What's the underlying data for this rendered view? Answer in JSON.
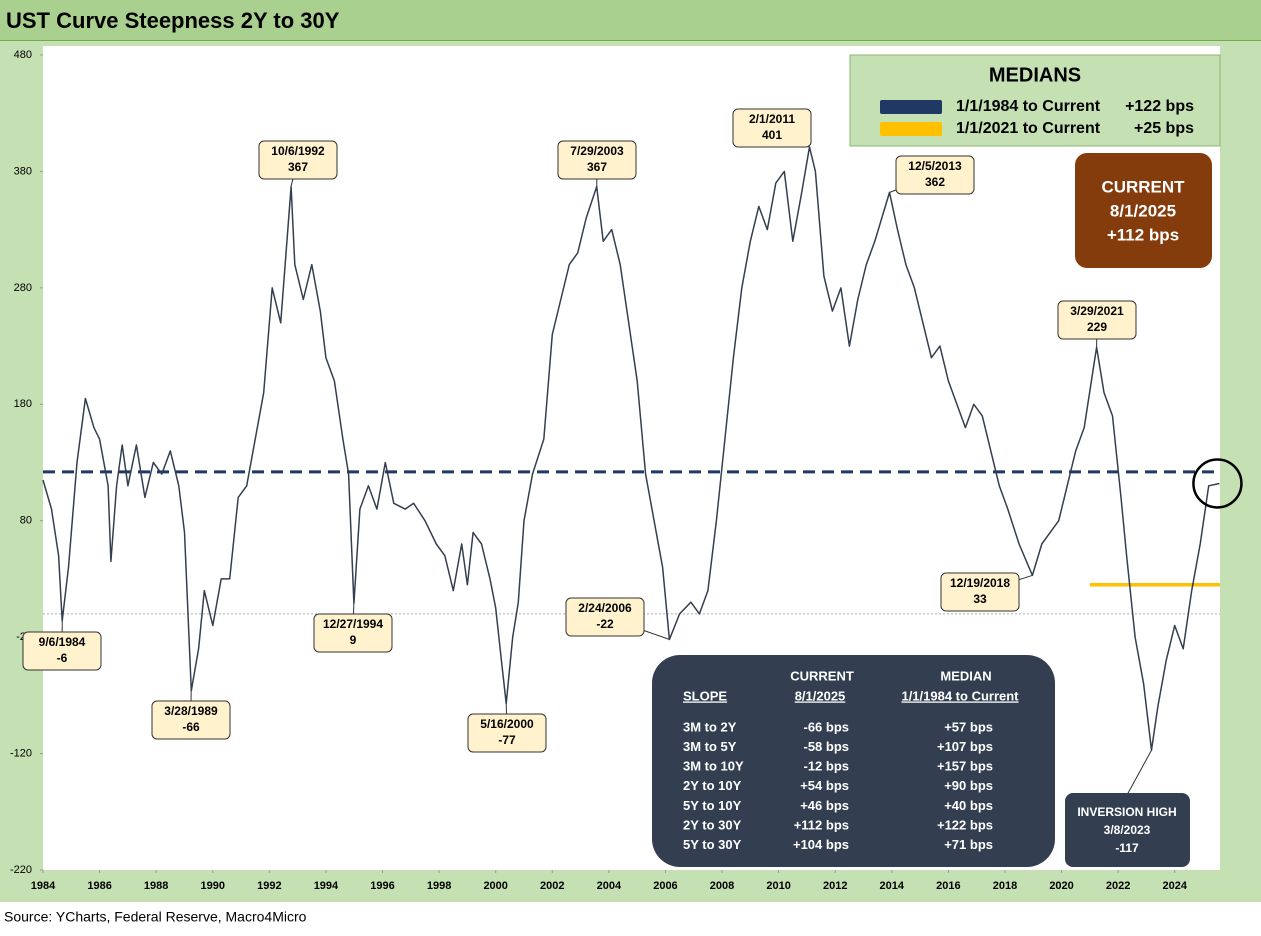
{
  "chart_data": {
    "type": "line",
    "title": "UST Curve Steepness 2Y to 30Y",
    "source": "Source: YCharts, Federal Reserve, Macro4Micro",
    "xlim": [
      1984,
      2025.6
    ],
    "xticks": [
      1984,
      1986,
      1988,
      1990,
      1992,
      1994,
      1996,
      1998,
      2000,
      2002,
      2004,
      2006,
      2008,
      2010,
      2012,
      2014,
      2016,
      2018,
      2020,
      2022,
      2024
    ],
    "ylim": [
      -220,
      480
    ],
    "yticks": [
      -220,
      -120,
      -20,
      80,
      180,
      280,
      380,
      480
    ],
    "zero_line": 0,
    "x": [
      1984.0,
      1984.3,
      1984.55,
      1984.68,
      1984.9,
      1985.2,
      1985.5,
      1985.8,
      1986.0,
      1986.3,
      1986.4,
      1986.6,
      1986.8,
      1987.0,
      1987.3,
      1987.6,
      1987.9,
      1988.2,
      1988.5,
      1988.8,
      1989.0,
      1989.24,
      1989.5,
      1989.7,
      1990.0,
      1990.3,
      1990.6,
      1990.9,
      1991.2,
      1991.5,
      1991.8,
      1992.1,
      1992.4,
      1992.77,
      1992.9,
      1993.2,
      1993.5,
      1993.8,
      1994.0,
      1994.3,
      1994.6,
      1994.8,
      1994.99,
      1995.2,
      1995.5,
      1995.8,
      1996.1,
      1996.4,
      1996.8,
      1997.1,
      1997.5,
      1997.9,
      1998.2,
      1998.5,
      1998.8,
      1999.0,
      1999.2,
      1999.5,
      1999.8,
      2000.0,
      2000.2,
      2000.37,
      2000.6,
      2000.8,
      2001.0,
      2001.3,
      2001.7,
      2002.0,
      2002.3,
      2002.6,
      2002.9,
      2003.2,
      2003.57,
      2003.8,
      2004.1,
      2004.4,
      2004.7,
      2005.0,
      2005.3,
      2005.6,
      2005.9,
      2006.14,
      2006.5,
      2006.9,
      2007.2,
      2007.5,
      2007.8,
      2008.1,
      2008.4,
      2008.7,
      2009.0,
      2009.3,
      2009.6,
      2009.9,
      2010.2,
      2010.5,
      2010.8,
      2011.09,
      2011.3,
      2011.6,
      2011.9,
      2012.2,
      2012.5,
      2012.8,
      2013.1,
      2013.4,
      2013.92,
      2014.2,
      2014.5,
      2014.8,
      2015.1,
      2015.4,
      2015.7,
      2016.0,
      2016.3,
      2016.6,
      2016.9,
      2017.2,
      2017.5,
      2017.8,
      2018.1,
      2018.5,
      2018.97,
      2019.3,
      2019.6,
      2019.9,
      2020.2,
      2020.5,
      2020.8,
      2021.24,
      2021.5,
      2021.8,
      2022.1,
      2022.3,
      2022.6,
      2022.9,
      2023.18,
      2023.4,
      2023.7,
      2024.0,
      2024.3,
      2024.6,
      2024.9,
      2025.2,
      2025.58
    ],
    "series": [
      {
        "name": "2Y to 30Y",
        "color": "#333f50",
        "values": [
          115,
          90,
          50,
          -6,
          40,
          130,
          185,
          160,
          150,
          110,
          45,
          110,
          145,
          110,
          145,
          100,
          130,
          120,
          140,
          110,
          70,
          -66,
          -30,
          20,
          -10,
          30,
          30,
          100,
          110,
          150,
          190,
          280,
          250,
          367,
          300,
          270,
          300,
          260,
          220,
          200,
          150,
          120,
          9,
          90,
          110,
          90,
          130,
          95,
          90,
          95,
          80,
          60,
          50,
          20,
          60,
          25,
          70,
          60,
          30,
          5,
          -40,
          -77,
          -20,
          10,
          80,
          120,
          150,
          240,
          270,
          300,
          310,
          340,
          367,
          320,
          330,
          300,
          250,
          200,
          120,
          80,
          40,
          -22,
          0,
          10,
          0,
          20,
          80,
          150,
          220,
          280,
          320,
          350,
          330,
          370,
          380,
          320,
          360,
          401,
          380,
          290,
          260,
          280,
          230,
          270,
          300,
          320,
          362,
          330,
          300,
          280,
          250,
          220,
          230,
          200,
          180,
          160,
          180,
          170,
          140,
          110,
          90,
          60,
          33,
          60,
          70,
          80,
          110,
          140,
          160,
          229,
          190,
          170,
          100,
          50,
          -20,
          -60,
          -117,
          -80,
          -40,
          -10,
          -30,
          20,
          60,
          110,
          112
        ]
      }
    ],
    "annotations": [
      {
        "date": "9/6/1984",
        "value": -6
      },
      {
        "date": "3/28/1989",
        "value": -66
      },
      {
        "date": "10/6/1992",
        "value": 367
      },
      {
        "date": "12/27/1994",
        "value": 9
      },
      {
        "date": "5/16/2000",
        "value": -77
      },
      {
        "date": "7/29/2003",
        "value": 367
      },
      {
        "date": "2/24/2006",
        "value": -22
      },
      {
        "date": "2/1/2011",
        "value": 401
      },
      {
        "date": "12/5/2013",
        "value": 362
      },
      {
        "date": "12/19/2018",
        "value": 33
      },
      {
        "date": "3/29/2021",
        "value": 229
      }
    ],
    "inversion": {
      "title": "INVERSION HIGH",
      "date": "3/8/2023",
      "value": -117
    },
    "medians": {
      "title": "MEDIANS",
      "entries": [
        {
          "name": "1/1/1984 to Current",
          "value": 122,
          "value_label": "+122 bps",
          "color": "#1f3864"
        },
        {
          "name": "1/1/2021 to Current",
          "value": 25,
          "value_label": "+25 bps",
          "color": "#ffc000"
        }
      ]
    },
    "current": {
      "title": "CURRENT",
      "date": "8/1/2025",
      "value_label": "+112 bps"
    },
    "slope_table": {
      "slope_label": "SLOPE",
      "current_header": [
        "CURRENT",
        "8/1/2025"
      ],
      "median_header": [
        "MEDIAN",
        "1/1/1984 to Current"
      ],
      "rows": [
        [
          "3M to 2Y",
          "-66 bps",
          "+57 bps"
        ],
        [
          "3M to 5Y",
          "-58 bps",
          "+107 bps"
        ],
        [
          "3M to 10Y",
          "-12 bps",
          "+157 bps"
        ],
        [
          "2Y to 10Y",
          "+54 bps",
          "+90 bps"
        ],
        [
          "5Y to 10Y",
          "+46 bps",
          "+40 bps"
        ],
        [
          "2Y to 30Y",
          "+112 bps",
          "+122 bps"
        ],
        [
          "5Y to 30Y",
          "+104 bps",
          "+71 bps"
        ]
      ]
    }
  }
}
